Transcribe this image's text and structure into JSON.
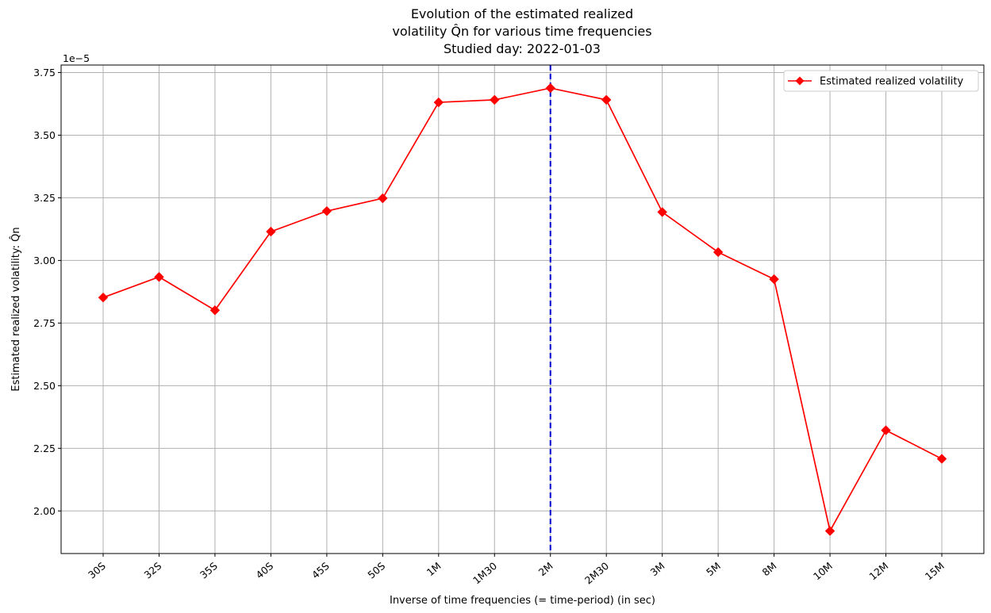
{
  "chart_data": {
    "type": "line",
    "title_lines": [
      "Evolution of the estimated realized",
      "volatility Q̂n for various time frequencies",
      "Studied day: 2022-01-03"
    ],
    "xlabel": "Inverse of time frequencies (= time-period) (in sec)",
    "ylabel": "Estimated realized volatility: Q̂n",
    "y_offset_label": "1e−5",
    "categories": [
      "30S",
      "32S",
      "35S",
      "40S",
      "45S",
      "50S",
      "1M",
      "1M30",
      "2M",
      "2M30",
      "3M",
      "5M",
      "8M",
      "10M",
      "12M",
      "15M"
    ],
    "series": [
      {
        "name": "Estimated realized volatility",
        "color": "#ff0000",
        "marker": "diamond",
        "values": [
          2.852,
          2.934,
          2.801,
          3.115,
          3.197,
          3.248,
          3.631,
          3.641,
          3.688,
          3.641,
          3.193,
          3.033,
          2.925,
          1.92,
          2.322,
          2.208
        ]
      }
    ],
    "vline": {
      "category": "2M",
      "color": "#0000cc",
      "style": "dashed"
    },
    "ylim": [
      1.83,
      3.78
    ],
    "yticks": [
      "2.00",
      "2.25",
      "2.50",
      "2.75",
      "3.00",
      "3.25",
      "3.50",
      "3.75"
    ],
    "ytick_values": [
      2.0,
      2.25,
      2.5,
      2.75,
      3.0,
      3.25,
      3.5,
      3.75
    ],
    "grid": true,
    "legend_position": "upper-right"
  }
}
